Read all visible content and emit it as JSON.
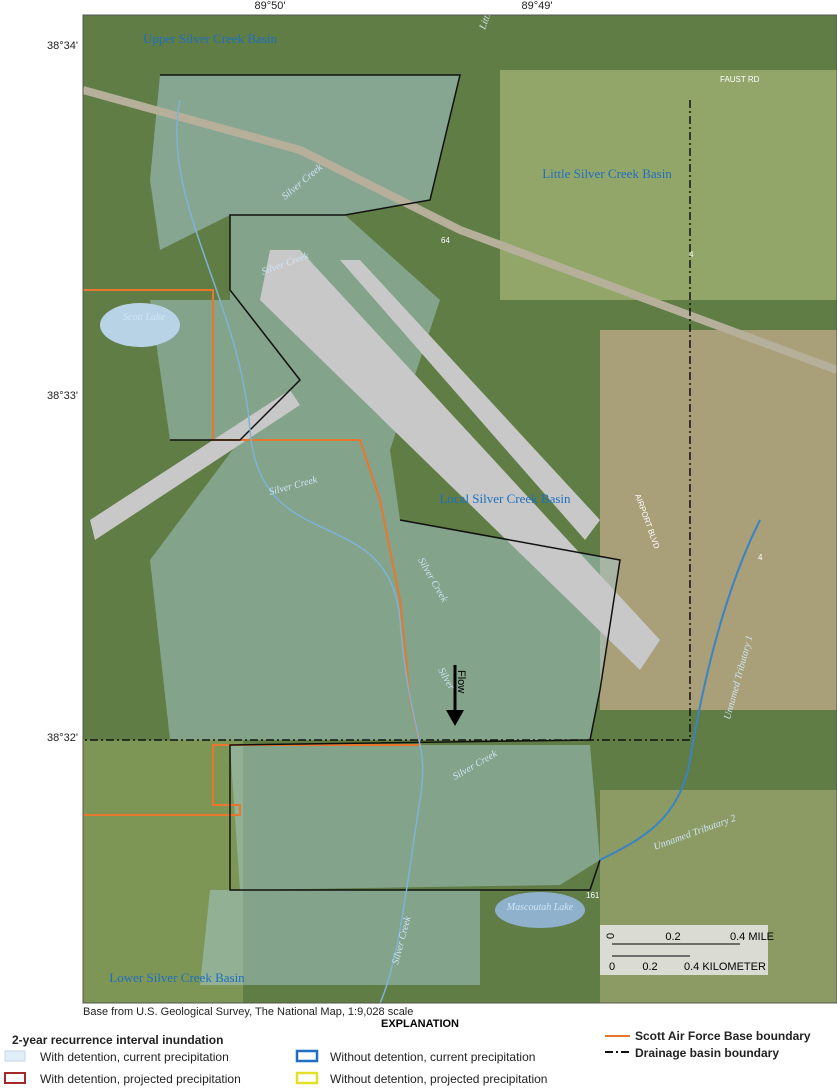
{
  "map": {
    "longitudes": [
      "89°50'",
      "89°49'"
    ],
    "latitudes": [
      "38°34'",
      "38°33'",
      "38°32'"
    ],
    "basins": [
      "Upper Silver Creek Basin",
      "Little Silver Creek Basin",
      "Local Silver Creek Basin",
      "Lower Silver Creek Basin"
    ],
    "lakes": [
      "Scott Lake",
      "Mascoutah Lake"
    ],
    "streams": [
      "Little S",
      "Silver Creek",
      "Silver Creek",
      "Silver Creek",
      "Silver Creek",
      "Silver",
      "Silver Creek",
      "Silver Creek",
      "Unnamed Tributary 1",
      "Unnamed Tributary 2"
    ],
    "flow": "Flow",
    "roads": [
      "FAUST RD",
      "AIRPORT BLVD",
      "64",
      "4",
      "4",
      "161"
    ],
    "scale": {
      "mile": [
        "0",
        "0.2",
        "0.4 MILE"
      ],
      "kilometer": [
        "0",
        "0.2",
        "0.4 KILOMETER"
      ]
    }
  },
  "credit": "Base from U.S. Geological Survey, The National Map, 1:9,028 scale",
  "explanation": {
    "title": "EXPLANATION",
    "subtitle": "2-year recurrence interval inundation",
    "items": [
      "With detention, current precipitation",
      "With detention, projected precipitation",
      "Without detention, current precipitation",
      "Without detention, projected precipitation"
    ],
    "boundaries": [
      "Scott Air Force Base boundary",
      "Drainage basin boundary"
    ]
  }
}
